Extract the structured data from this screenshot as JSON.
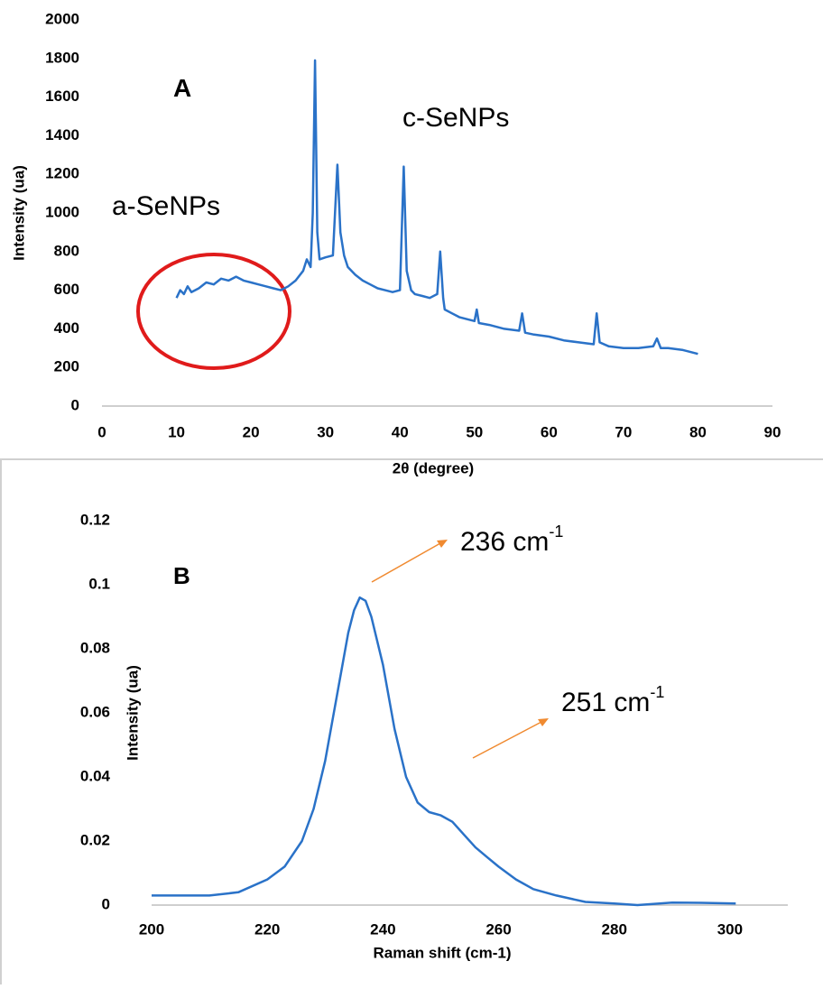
{
  "chart_data": [
    {
      "type": "line",
      "color": "#2a72c8",
      "xlabel": "2θ (degree)",
      "ylabel": "Intensity (ua)",
      "xlim": [
        0,
        90
      ],
      "xticks": [
        0,
        10,
        20,
        30,
        40,
        50,
        60,
        70,
        80,
        90
      ],
      "ylim": [
        0,
        2000
      ],
      "yticks": [
        0,
        200,
        400,
        600,
        800,
        1000,
        1200,
        1400,
        1600,
        1800,
        2000
      ],
      "grid": false,
      "annotations": [
        {
          "text": "A"
        },
        {
          "text": "c-SeNPs"
        },
        {
          "text": "a-SeNPs"
        }
      ],
      "x": [
        10,
        10.5,
        11,
        11.5,
        12,
        13,
        14,
        15,
        16,
        17,
        18,
        19,
        20,
        21,
        22,
        23,
        24,
        25,
        26,
        27,
        27.5,
        28,
        28.3,
        28.6,
        28.9,
        29.2,
        30,
        31,
        31.6,
        32,
        32.5,
        33,
        34,
        35,
        36,
        37,
        38,
        39,
        40,
        40.5,
        40.9,
        41.5,
        42,
        43,
        44,
        45,
        45.4,
        45.8,
        46,
        47,
        48,
        49,
        50,
        50.3,
        50.6,
        52,
        54,
        56,
        56.4,
        56.8,
        58,
        60,
        62,
        64,
        66,
        66.4,
        66.8,
        68,
        70,
        72,
        74,
        74.5,
        75,
        76,
        78,
        79,
        80
      ],
      "values": [
        560,
        600,
        580,
        620,
        590,
        610,
        640,
        630,
        660,
        650,
        670,
        650,
        640,
        630,
        620,
        610,
        600,
        620,
        650,
        700,
        760,
        720,
        1000,
        1790,
        900,
        760,
        770,
        780,
        1250,
        900,
        780,
        720,
        680,
        650,
        630,
        610,
        600,
        590,
        600,
        1240,
        700,
        600,
        580,
        570,
        560,
        580,
        800,
        560,
        500,
        480,
        460,
        450,
        440,
        500,
        430,
        420,
        400,
        390,
        480,
        380,
        370,
        360,
        340,
        330,
        320,
        480,
        330,
        310,
        300,
        300,
        310,
        350,
        300,
        300,
        290,
        280,
        270
      ]
    },
    {
      "type": "line",
      "color": "#2a72c8",
      "xlabel": "Raman shift (cm-1)",
      "ylabel": "Intensity (ua)",
      "xlim": [
        200,
        310
      ],
      "xticks": [
        200,
        220,
        240,
        260,
        280,
        300
      ],
      "ylim": [
        0,
        0.12
      ],
      "yticks": [
        0,
        0.02,
        0.04,
        0.06,
        0.08,
        0.1,
        0.12
      ],
      "grid": false,
      "annotations": [
        {
          "text": "B"
        },
        {
          "text": "236 cm",
          "sup": "-1"
        },
        {
          "text": "251 cm",
          "sup": "-1"
        }
      ],
      "x": [
        200,
        205,
        210,
        215,
        220,
        223,
        226,
        228,
        230,
        232,
        234,
        235,
        236,
        237,
        238,
        240,
        242,
        244,
        246,
        248,
        250,
        252,
        254,
        256,
        258,
        260,
        263,
        266,
        270,
        275,
        280,
        284,
        290,
        295,
        301
      ],
      "values": [
        0.003,
        0.003,
        0.003,
        0.004,
        0.008,
        0.012,
        0.02,
        0.03,
        0.045,
        0.065,
        0.085,
        0.092,
        0.096,
        0.095,
        0.09,
        0.075,
        0.055,
        0.04,
        0.032,
        0.029,
        0.028,
        0.026,
        0.022,
        0.018,
        0.015,
        0.012,
        0.008,
        0.005,
        0.003,
        0.001,
        0.0005,
        0,
        0.0008,
        0.0007,
        0.0005
      ]
    }
  ]
}
